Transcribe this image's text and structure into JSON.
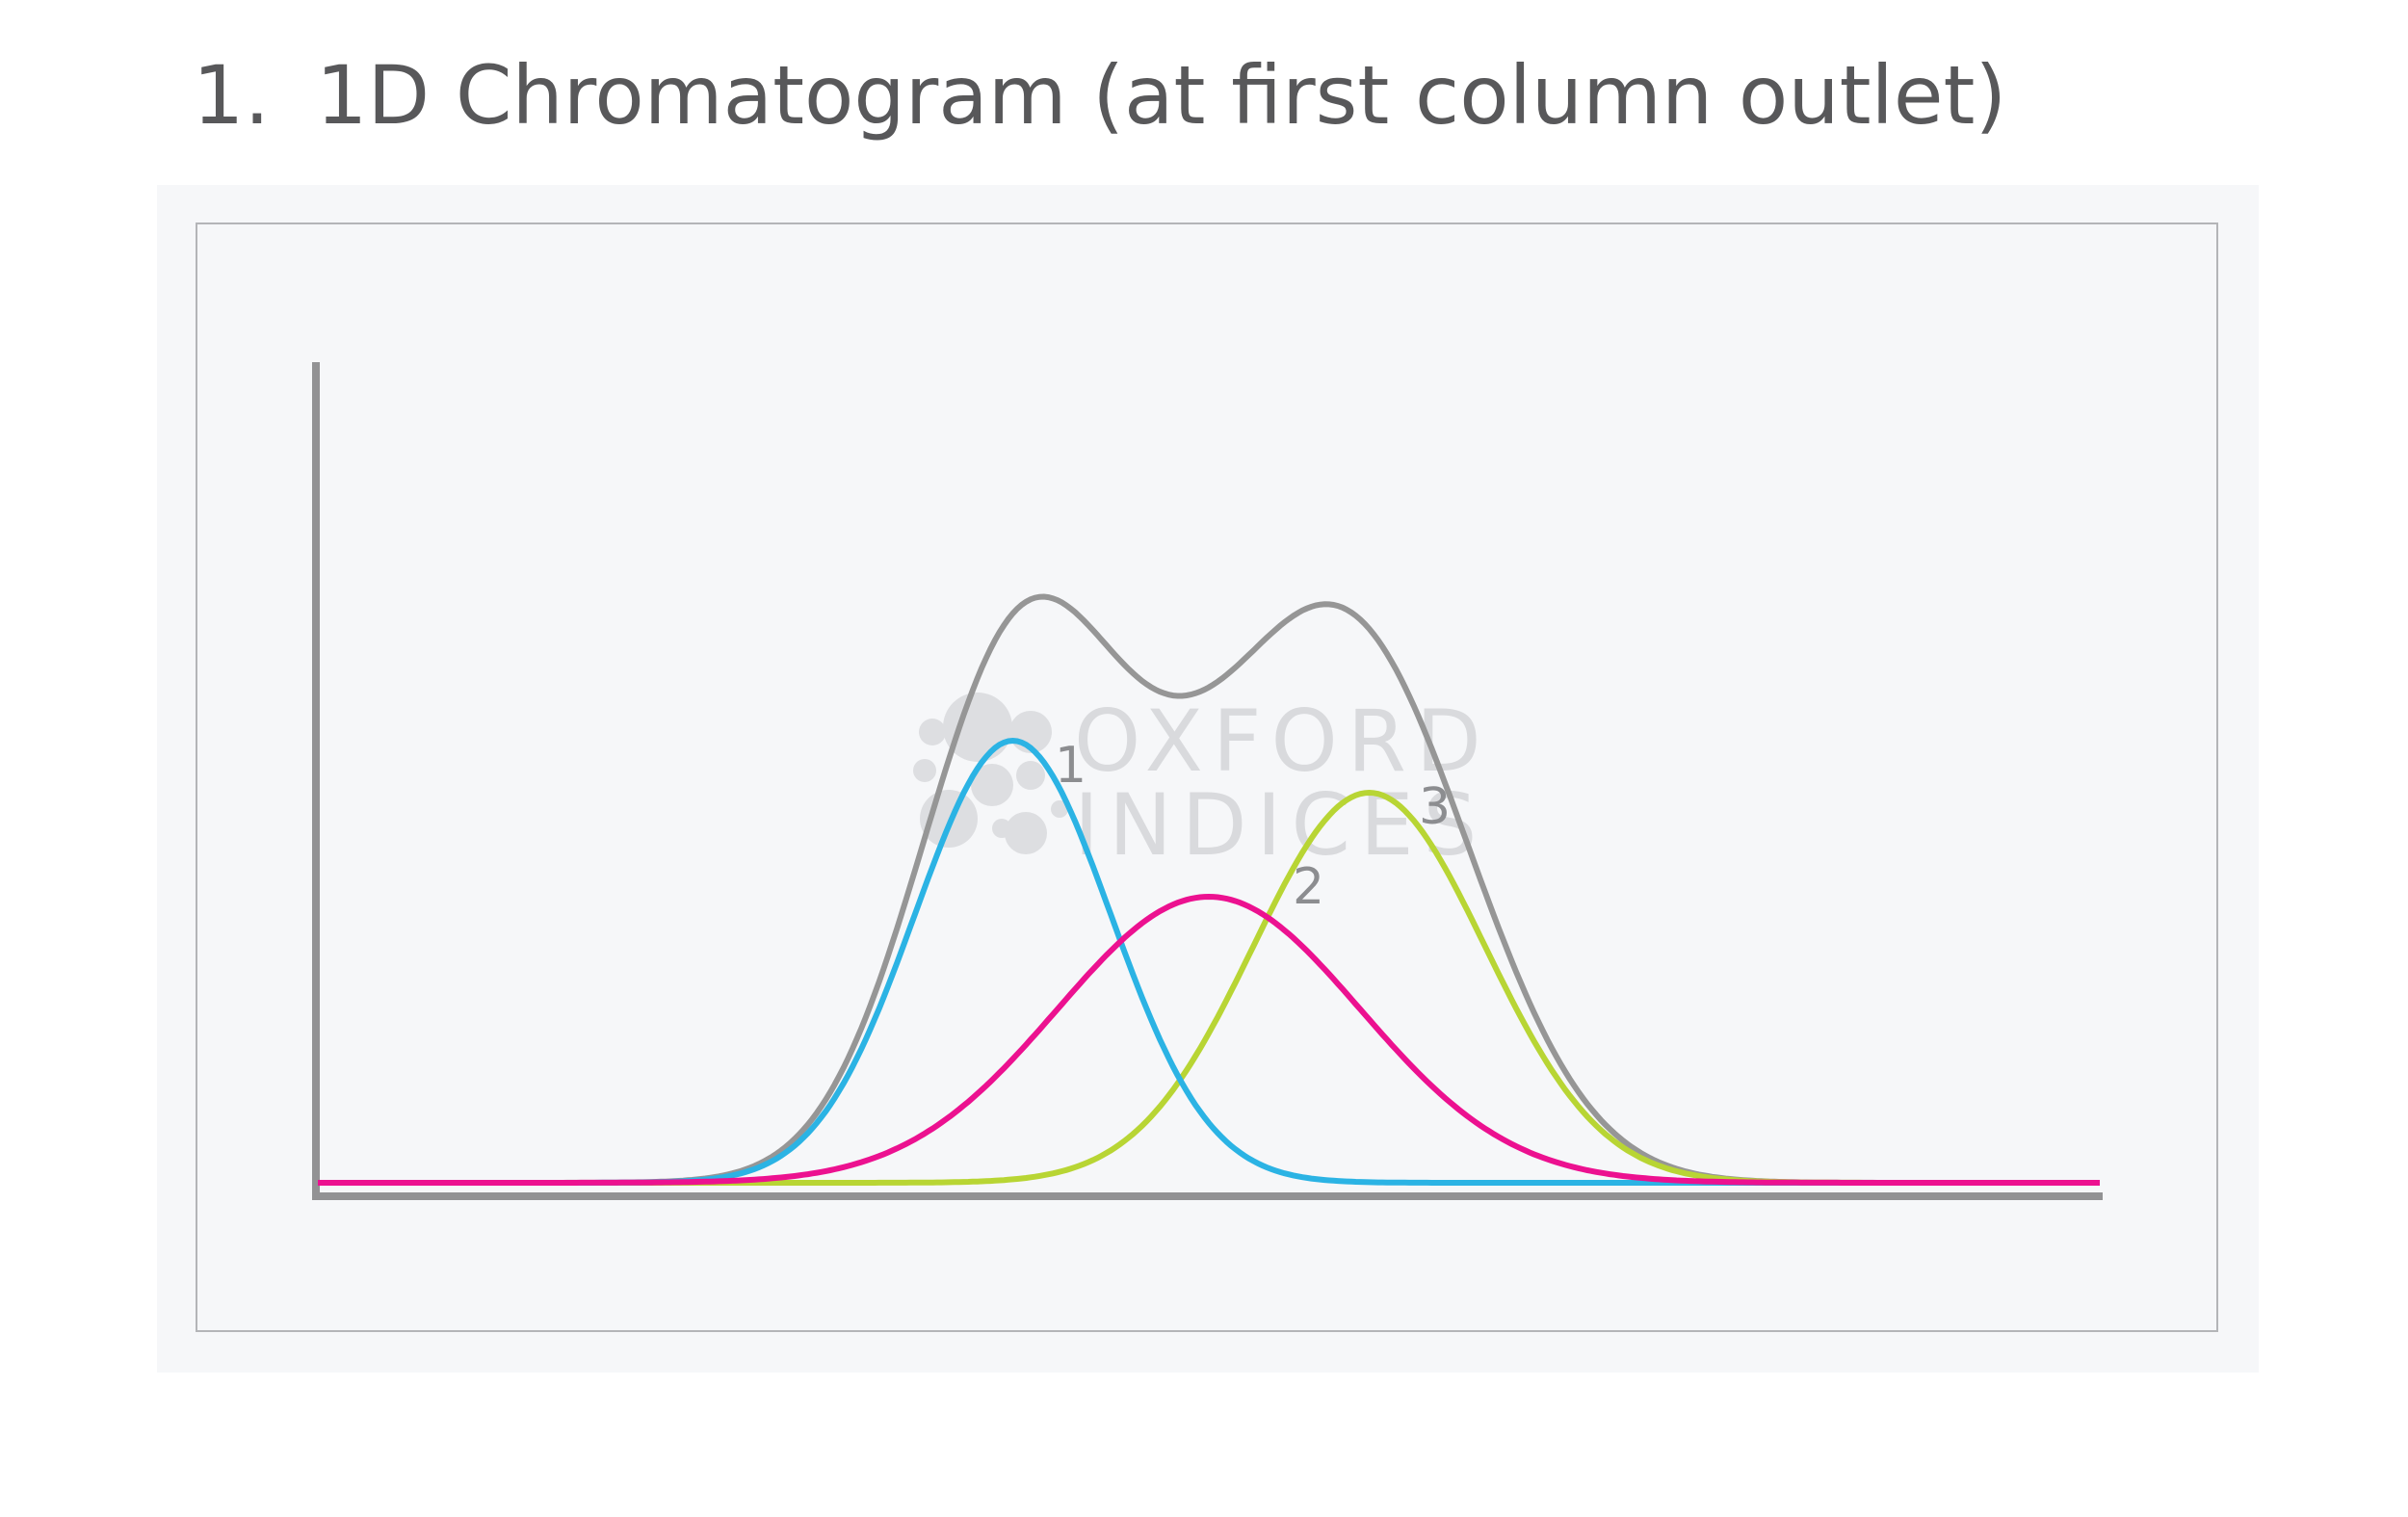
{
  "title": {
    "number": "1.",
    "text": "1D Chromatogram (at first column outlet)"
  },
  "watermark": {
    "line1": "OXFORD",
    "line2": "INDICES"
  },
  "colors": {
    "axis": "#929294",
    "total": "#969696",
    "peak1": "#2bb3e4",
    "peak2": "#ec1190",
    "peak3": "#b8d534"
  },
  "chart_data": {
    "type": "line",
    "series": [
      {
        "name": "1",
        "color": "#2bb3e4",
        "center": 0.39,
        "width": 0.055,
        "height": 0.51
      },
      {
        "name": "2",
        "color": "#ec1190",
        "center": 0.5,
        "width": 0.085,
        "height": 0.33
      },
      {
        "name": "3",
        "color": "#b8d534",
        "center": 0.59,
        "width": 0.065,
        "height": 0.45
      }
    ],
    "xlim": [
      0,
      1
    ],
    "ylim": [
      0,
      1
    ]
  }
}
